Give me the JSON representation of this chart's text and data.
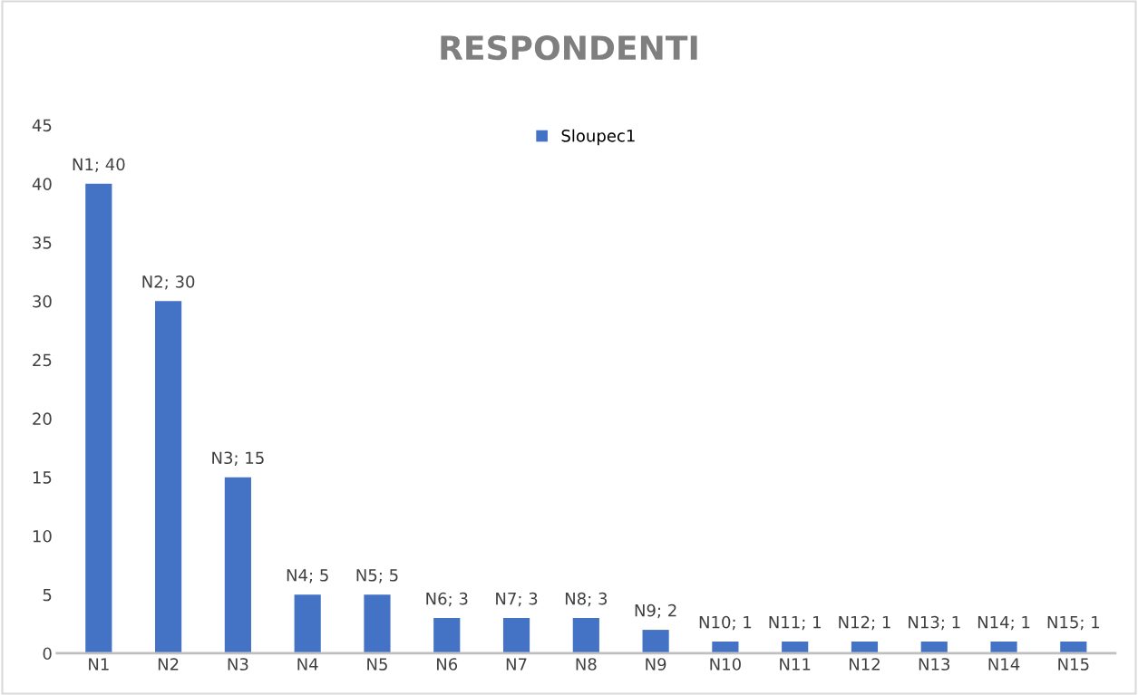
{
  "chart_data": {
    "type": "bar",
    "title": "RESPONDENTI",
    "categories": [
      "N1",
      "N2",
      "N3",
      "N4",
      "N5",
      "N6",
      "N7",
      "N8",
      "N9",
      "N10",
      "N11",
      "N12",
      "N13",
      "N14",
      "N15"
    ],
    "series": [
      {
        "name": "Sloupec1",
        "color": "#4472c4",
        "values": [
          40,
          30,
          15,
          5,
          5,
          3,
          3,
          3,
          2,
          1,
          1,
          1,
          1,
          1,
          1
        ],
        "value_labels": [
          "N1; 40",
          "N2; 30",
          "N3; 15",
          "N4; 5",
          "N5; 5",
          "N6; 3",
          "N7; 3",
          "N8; 3",
          "N9; 2",
          "N10; 1",
          "N11; 1",
          "N12; 1",
          "N13; 1",
          "N14; 1",
          "N15; 1"
        ]
      }
    ],
    "ylim": [
      0,
      45
    ],
    "yticks": [
      0,
      5,
      10,
      15,
      20,
      25,
      30,
      35,
      40,
      45
    ],
    "grid": false,
    "legend": "top"
  }
}
